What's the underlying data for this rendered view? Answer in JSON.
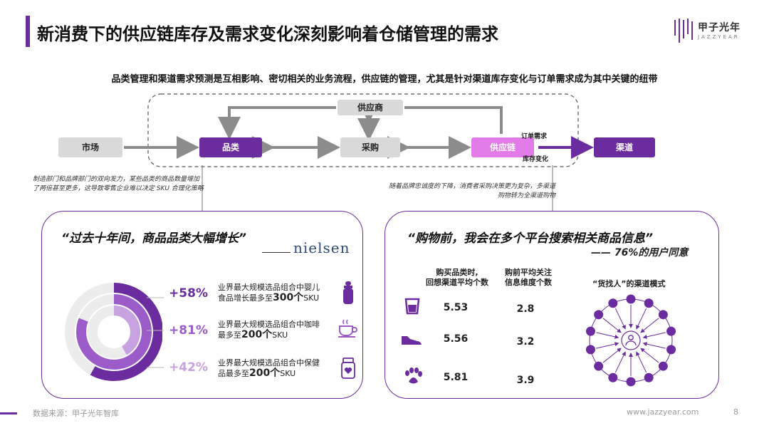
{
  "header": {
    "title": "新消费下的供应链库存及需求变化深刻影响着仓储管理的需求",
    "logo_name": "甲子光年",
    "logo_sub": "JAZZYEAR"
  },
  "subtitle": "品类管理和渠道需求预测是互相影响、密切相关的业务流程，供应链的管理，尤其是针对渠道库存变化与订单需求成为其中关键的纽带",
  "flow": {
    "supplier": "供应商",
    "market": "市场",
    "category": "品类",
    "purchase": "采购",
    "supply_chain": "供应链",
    "channel": "渠道",
    "order_demand": "订单需求",
    "inventory_change": "库存变化"
  },
  "notes": {
    "left": "制造部门和品牌部门的双向发力，某些品类的商品数量增加了两倍甚至更多，这导致零售企业难以决定 SKU 合理化策略",
    "right": "随着品牌忠诚度的下降，消费者采购决策更为复杂，多渠道购物转为全渠道购物"
  },
  "left_card": {
    "quote": "“过去十年间，商品品类大幅增长”",
    "brand": "nielsen",
    "items": [
      {
        "pct": "+58%",
        "line1": "业界最大规模选品组合中婴儿",
        "line2_pre": "食品增长最多至",
        "line2_num": "300个",
        "line2_post": "SKU",
        "icon": "baby-bottle-icon",
        "color": "#6a2c9e"
      },
      {
        "pct": "+81%",
        "line1": "业界最大规模选品组合中咖啡",
        "line2_pre": "最多至",
        "line2_num": "200个",
        "line2_post": "SKU",
        "icon": "coffee-cup-icon",
        "color": "#9b5cc9"
      },
      {
        "pct": "+42%",
        "line1": "业界最大规模选品组合中保健",
        "line2_pre": "品最多至",
        "line2_num": "200个",
        "line2_post": "SKU",
        "icon": "health-jar-icon",
        "color": "#c6a3e0"
      }
    ],
    "rings": [
      0.58,
      0.81,
      0.42
    ]
  },
  "right_card": {
    "quote": "“购物前，我会在多个平台搜索相关商品信息”",
    "user_note": "—— 76%的用户同意",
    "col1_head_1": "购买品类时,",
    "col1_head_2": "回想渠道平均个数",
    "col2_head_1": "购前平均关注",
    "col2_head_2": "信息维度个数",
    "rows": [
      {
        "icon": "cup-icon",
        "a": "5.53",
        "b": "2.8"
      },
      {
        "icon": "shoe-icon",
        "a": "5.56",
        "b": "3.2"
      },
      {
        "icon": "paw-icon",
        "a": "5.81",
        "b": "3.9"
      }
    ],
    "model_title": "“货找人”的渠道模式"
  },
  "footer": {
    "source": "数据来源：甲子光年智库",
    "url": "www.jazzyear.com",
    "page": "8"
  }
}
